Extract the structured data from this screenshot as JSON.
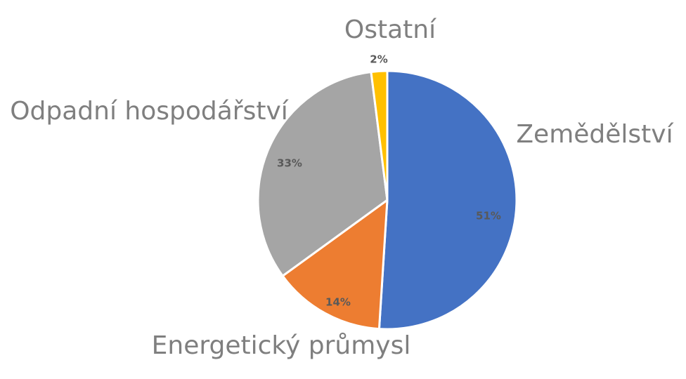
{
  "chart_data": {
    "type": "pie",
    "title": "",
    "start_angle_deg": 0,
    "direction": "clockwise",
    "legend": "none",
    "slices": [
      {
        "label": "Zemědělství",
        "value": 51,
        "pct_label": "51%",
        "color": "#4472C4"
      },
      {
        "label": "Energetický průmysl",
        "value": 14,
        "pct_label": "14%",
        "color": "#ED7D31"
      },
      {
        "label": "Odpadní hospodářství",
        "value": 33,
        "pct_label": "33%",
        "color": "#A5A5A5"
      },
      {
        "label": "Ostatní",
        "value": 2,
        "pct_label": "2%",
        "color": "#FFC000"
      }
    ]
  }
}
